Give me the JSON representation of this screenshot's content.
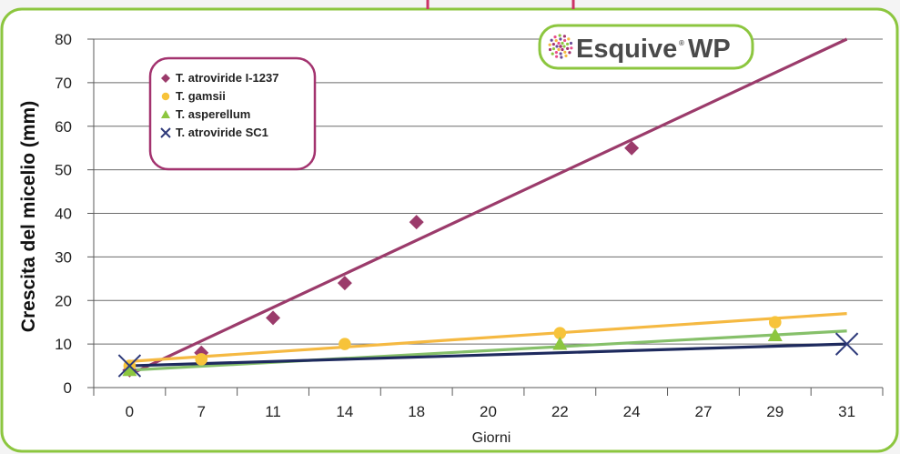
{
  "chart_data": {
    "type": "scatter",
    "title": "",
    "xlabel": "Giorni",
    "ylabel": "Crescita del micelio (mm)",
    "categories": [
      "0",
      "7",
      "11",
      "14",
      "18",
      "20",
      "22",
      "24",
      "27",
      "29",
      "31"
    ],
    "ylim": [
      0,
      80
    ],
    "yticks": [
      0,
      10,
      20,
      30,
      40,
      50,
      60,
      70,
      80
    ],
    "grid": "horizontal",
    "legend_position": "top-left",
    "trendlines": true,
    "series": [
      {
        "name": "T. atroviride I-1237",
        "marker": "diamond",
        "color": "#9b3b6b",
        "x": [
          "0",
          "7",
          "11",
          "14",
          "18",
          "24"
        ],
        "y": [
          4,
          8,
          16,
          24,
          38,
          55
        ],
        "trend": [
          3,
          80
        ]
      },
      {
        "name": "T. gamsii",
        "marker": "circle",
        "color": "#f7c33a",
        "trend_color": "#f5b942",
        "x": [
          "0",
          "7",
          "14",
          "22",
          "29"
        ],
        "y": [
          5,
          6.5,
          10,
          12.5,
          15
        ],
        "trend": [
          6,
          17
        ]
      },
      {
        "name": "T. asperellum",
        "marker": "triangle",
        "color": "#8cc63f",
        "trend_color": "#86c06a",
        "x": [
          "0",
          "22",
          "29"
        ],
        "y": [
          4,
          10,
          12
        ],
        "trend": [
          4,
          13
        ]
      },
      {
        "name": "T. atroviride SC1",
        "marker": "x",
        "color": "#2e3a7a",
        "trend_color": "#1e2a5e",
        "x": [
          "0",
          "31"
        ],
        "y": [
          5,
          10
        ],
        "trend": [
          5,
          10
        ]
      }
    ]
  },
  "logo": {
    "brand": "Esquive",
    "suffix": "WP",
    "registered": "®",
    "icon": "dotted-flower-icon"
  },
  "colors": {
    "frame": "#8cc63f",
    "legend_border": "#a3336f",
    "background": "#ffffff"
  }
}
